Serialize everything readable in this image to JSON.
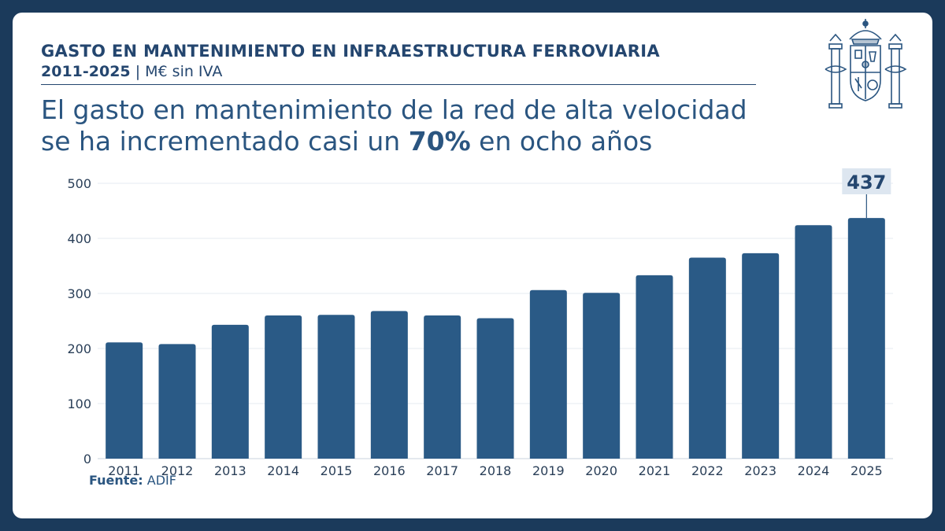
{
  "header": {
    "title": "GASTO EN MANTENIMIENTO EN INFRAESTRUCTURA FERROVIARIA",
    "years": "2011-2025",
    "separator": "|",
    "units": "M€ sin IVA"
  },
  "headline": {
    "line1": "El gasto en mantenimiento de la red de alta velocidad",
    "line2_pre": "se ha incrementado casi un ",
    "line2_strong": "70%",
    "line2_post": " en ocho años"
  },
  "footer": {
    "source_label": "Fuente:",
    "source_value": "ADIF"
  },
  "emblem": {
    "icon": "spain-coat-of-arms-icon"
  },
  "colors": {
    "background": "#1b3a5b",
    "card": "#ffffff",
    "bar": "#2a5a86",
    "title": "#24466f",
    "headline": "#2a5580",
    "callout_bg": "#dde6f0"
  },
  "chart_data": {
    "type": "bar",
    "title": "",
    "xlabel": "",
    "ylabel": "",
    "categories": [
      "2011",
      "2012",
      "2013",
      "2014",
      "2015",
      "2016",
      "2017",
      "2018",
      "2019",
      "2020",
      "2021",
      "2022",
      "2023",
      "2024",
      "2025"
    ],
    "values": [
      211,
      208,
      243,
      260,
      261,
      268,
      260,
      255,
      306,
      301,
      333,
      365,
      373,
      424,
      437
    ],
    "ylim": [
      0,
      500
    ],
    "yticks": [
      0,
      100,
      200,
      300,
      400,
      500
    ],
    "grid": true,
    "legend": "none",
    "annotations": [
      {
        "category": "2025",
        "text": "437"
      }
    ]
  }
}
